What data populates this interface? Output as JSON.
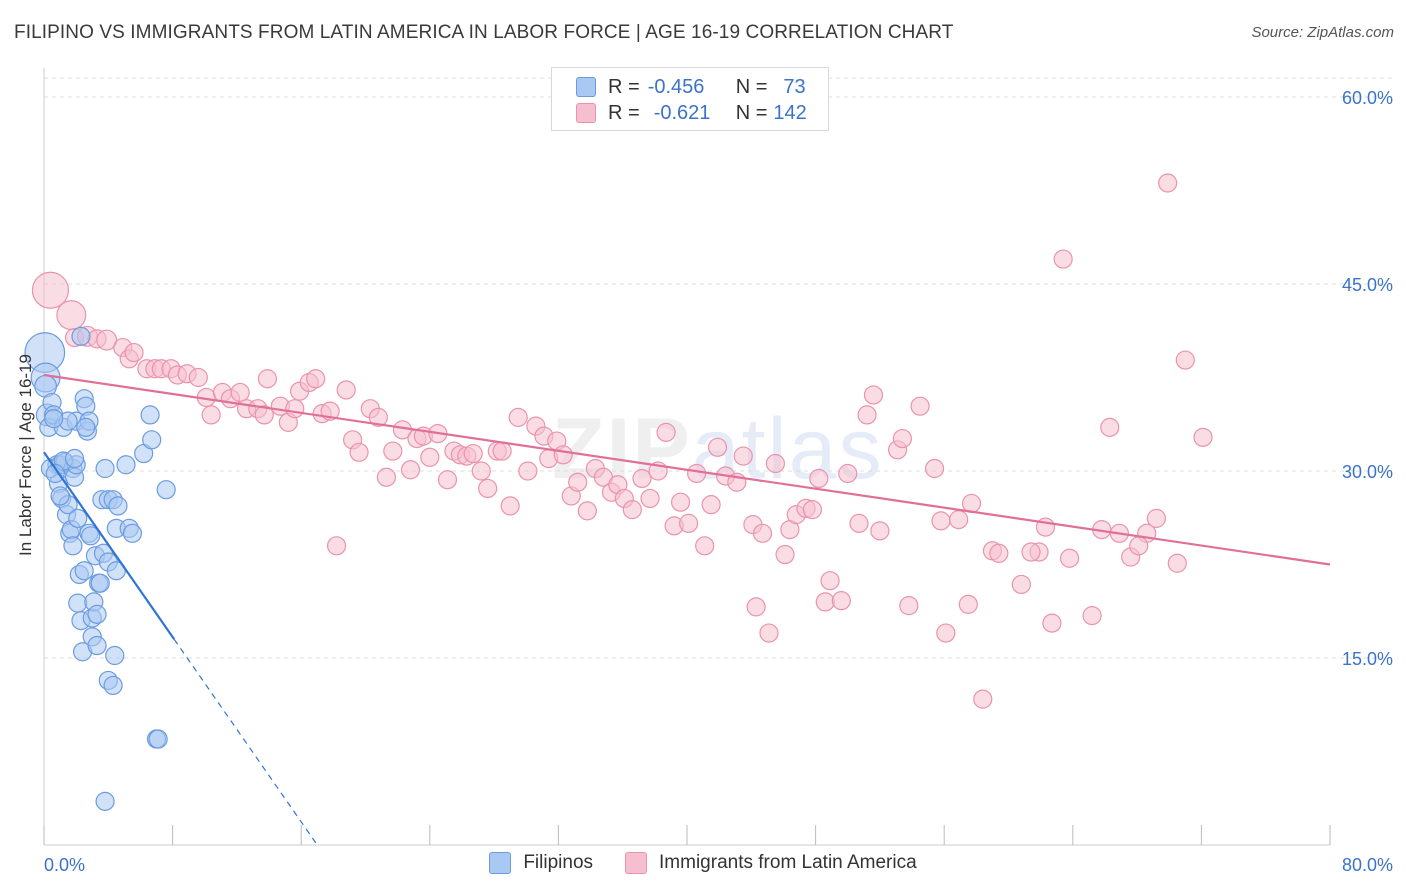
{
  "title": "FILIPINO VS IMMIGRANTS FROM LATIN AMERICA IN LABOR FORCE | AGE 16-19 CORRELATION CHART",
  "source": "Source: ZipAtlas.com",
  "watermark": {
    "zip": "ZIP",
    "atlas": "atlas"
  },
  "legend": {
    "r_label": "R =",
    "n_label": "N =",
    "series": [
      {
        "r": "-0.456",
        "n": "73"
      },
      {
        "r": "-0.621",
        "n": "142"
      }
    ]
  },
  "colors": {
    "blue_fill": "#a9c8f2",
    "blue_stroke": "#6b9ce0",
    "blue_line": "#2f74d4",
    "pink_fill": "#f6bfcf",
    "pink_stroke": "#ea93ad",
    "pink_line": "#e07098",
    "tick_text": "#3b73c9",
    "grid": "#dddddd"
  },
  "chart_data": {
    "type": "scatter",
    "title": "FILIPINO VS IMMIGRANTS FROM LATIN AMERICA IN LABOR FORCE | AGE 16-19 CORRELATION CHART",
    "xlabel": "",
    "ylabel": "In Labor Force | Age 16-19",
    "xlim": [
      0,
      80
    ],
    "ylim": [
      0,
      60
    ],
    "x_tick_labels": [
      "0.0%",
      "80.0%"
    ],
    "y_ticks": [
      {
        "value": 15,
        "label": "15.0%"
      },
      {
        "value": 30,
        "label": "30.0%"
      },
      {
        "value": 45,
        "label": "45.0%"
      },
      {
        "value": 60,
        "label": "60.0%"
      }
    ],
    "series": [
      {
        "name": "Filipinos",
        "r": -0.456,
        "n": 73,
        "trend": {
          "x0": 0,
          "y0": 31.5,
          "x1": 8.1,
          "y1": 16.5,
          "dash_to_x": 17,
          "dash_to_y": 0
        },
        "points": [
          [
            0.05,
            39.5,
            2.2
          ],
          [
            0.1,
            37.5,
            1.6
          ],
          [
            0.1,
            36.8,
            1.2
          ],
          [
            0.2,
            34.5,
            1.2
          ],
          [
            0.3,
            33.5,
            1
          ],
          [
            0.5,
            35.5,
            1
          ],
          [
            0.6,
            34.5,
            1
          ],
          [
            0.8,
            30.5,
            1
          ],
          [
            0.4,
            30.2,
            1
          ],
          [
            0.9,
            29.0,
            1
          ],
          [
            1.0,
            30.5,
            1
          ],
          [
            1.1,
            27.8,
            1
          ],
          [
            1.2,
            33.5,
            1
          ],
          [
            1.3,
            30.7,
            1
          ],
          [
            1.4,
            26.5,
            1
          ],
          [
            1.5,
            27.3,
            1
          ],
          [
            1.6,
            25.0,
            1
          ],
          [
            1.7,
            25.3,
            1
          ],
          [
            1.8,
            24.0,
            1
          ],
          [
            1.8,
            30.2,
            1
          ],
          [
            1.9,
            29.5,
            1
          ],
          [
            2.0,
            30.5,
            1
          ],
          [
            2.0,
            34.0,
            1
          ],
          [
            2.1,
            26.2,
            1
          ],
          [
            2.1,
            19.4,
            1
          ],
          [
            2.2,
            21.7,
            1
          ],
          [
            2.3,
            18.0,
            1
          ],
          [
            2.3,
            40.8,
            1
          ],
          [
            2.4,
            15.5,
            1
          ],
          [
            2.5,
            22.0,
            1
          ],
          [
            2.5,
            35.8,
            1
          ],
          [
            2.6,
            35.2,
            1
          ],
          [
            2.7,
            33.2,
            1
          ],
          [
            2.8,
            25.0,
            1
          ],
          [
            2.8,
            34.0,
            1
          ],
          [
            2.9,
            24.8,
            1
          ],
          [
            3.0,
            18.2,
            1
          ],
          [
            3.0,
            16.7,
            1
          ],
          [
            3.1,
            19.5,
            1
          ],
          [
            3.2,
            23.2,
            1
          ],
          [
            3.3,
            18.5,
            1
          ],
          [
            3.3,
            16.0,
            1
          ],
          [
            3.4,
            21.0,
            1
          ],
          [
            3.5,
            21.0,
            1
          ],
          [
            3.6,
            27.7,
            1
          ],
          [
            3.7,
            23.4,
            1
          ],
          [
            3.8,
            30.2,
            1
          ],
          [
            3.8,
            3.5,
            1
          ],
          [
            4.0,
            27.7,
            1
          ],
          [
            4.0,
            22.7,
            1
          ],
          [
            4.0,
            13.2,
            1
          ],
          [
            4.3,
            12.8,
            1
          ],
          [
            4.3,
            27.7,
            1
          ],
          [
            4.4,
            15.2,
            1
          ],
          [
            4.5,
            22.0,
            1
          ],
          [
            4.5,
            25.4,
            1
          ],
          [
            4.6,
            27.2,
            1
          ],
          [
            5.1,
            30.5,
            1
          ],
          [
            5.3,
            25.4,
            1
          ],
          [
            5.5,
            25.0,
            1
          ],
          [
            6.2,
            31.4,
            1
          ],
          [
            6.6,
            34.5,
            1
          ],
          [
            6.7,
            32.5,
            1
          ],
          [
            7.0,
            8.5,
            1
          ],
          [
            7.1,
            8.5,
            1
          ],
          [
            7.6,
            28.5,
            1
          ],
          [
            1.5,
            34.0,
            1
          ],
          [
            0.6,
            34.2,
            1
          ],
          [
            1.2,
            30.8,
            1
          ],
          [
            1.0,
            28.0,
            1
          ],
          [
            0.7,
            29.8,
            1
          ],
          [
            2.6,
            33.5,
            1
          ],
          [
            1.9,
            31.0,
            1
          ]
        ]
      },
      {
        "name": "Immigrants from Latin America",
        "r": -0.621,
        "n": 142,
        "trend": {
          "x0": 0,
          "y0": 37.7,
          "x1": 80,
          "y1": 22.5
        },
        "points": [
          [
            0.4,
            44.5,
            2
          ],
          [
            1.7,
            42.5,
            1.6
          ],
          [
            1.9,
            40.7,
            1
          ],
          [
            2.7,
            40.8,
            1.1
          ],
          [
            3.3,
            40.6,
            1
          ],
          [
            3.9,
            40.5,
            1.1
          ],
          [
            4.9,
            39.9,
            1
          ],
          [
            5.3,
            39.0,
            1
          ],
          [
            5.6,
            39.5,
            1
          ],
          [
            6.4,
            38.2,
            1
          ],
          [
            6.9,
            38.2,
            1
          ],
          [
            7.3,
            38.2,
            1
          ],
          [
            7.9,
            38.2,
            1
          ],
          [
            8.3,
            37.7,
            1
          ],
          [
            8.9,
            37.8,
            1
          ],
          [
            9.6,
            37.5,
            1
          ],
          [
            10.1,
            35.9,
            1
          ],
          [
            10.4,
            34.5,
            1
          ],
          [
            11.1,
            36.3,
            1
          ],
          [
            11.6,
            35.8,
            1
          ],
          [
            12.2,
            36.3,
            1
          ],
          [
            12.6,
            35.0,
            1
          ],
          [
            13.3,
            35.0,
            1
          ],
          [
            13.7,
            34.5,
            1
          ],
          [
            13.9,
            37.4,
            1
          ],
          [
            14.7,
            35.2,
            1
          ],
          [
            15.2,
            33.9,
            1
          ],
          [
            15.6,
            35.0,
            1
          ],
          [
            15.9,
            36.4,
            1
          ],
          [
            16.5,
            37.1,
            1
          ],
          [
            16.9,
            37.4,
            1
          ],
          [
            17.3,
            34.6,
            1
          ],
          [
            17.8,
            34.8,
            1
          ],
          [
            18.2,
            24.0,
            1
          ],
          [
            18.8,
            36.5,
            1
          ],
          [
            19.2,
            32.5,
            1
          ],
          [
            19.6,
            31.5,
            1
          ],
          [
            20.3,
            35.0,
            1
          ],
          [
            20.8,
            34.3,
            1
          ],
          [
            21.3,
            29.5,
            1
          ],
          [
            21.7,
            31.6,
            1
          ],
          [
            22.3,
            33.3,
            1
          ],
          [
            22.8,
            30.1,
            1
          ],
          [
            23.2,
            32.6,
            1
          ],
          [
            23.6,
            32.8,
            1
          ],
          [
            24.0,
            31.1,
            1
          ],
          [
            24.5,
            33.0,
            1
          ],
          [
            25.1,
            29.3,
            1
          ],
          [
            25.5,
            31.6,
            1
          ],
          [
            25.9,
            31.3,
            1
          ],
          [
            26.3,
            31.2,
            1
          ],
          [
            26.7,
            31.4,
            1
          ],
          [
            27.2,
            30.0,
            1
          ],
          [
            27.6,
            28.6,
            1
          ],
          [
            28.2,
            31.6,
            1
          ],
          [
            28.5,
            31.6,
            1
          ],
          [
            29.0,
            27.2,
            1
          ],
          [
            29.5,
            34.3,
            1
          ],
          [
            30.1,
            30.0,
            1
          ],
          [
            30.6,
            33.6,
            1
          ],
          [
            31.1,
            32.8,
            1
          ],
          [
            31.4,
            31.0,
            1
          ],
          [
            31.9,
            32.4,
            1
          ],
          [
            32.3,
            31.3,
            1
          ],
          [
            32.8,
            28.0,
            1
          ],
          [
            33.2,
            29.1,
            1
          ],
          [
            33.8,
            26.8,
            1
          ],
          [
            34.3,
            30.2,
            1
          ],
          [
            34.8,
            29.5,
            1
          ],
          [
            35.3,
            28.3,
            1
          ],
          [
            35.7,
            28.9,
            1
          ],
          [
            36.1,
            27.8,
            1
          ],
          [
            36.6,
            26.9,
            1
          ],
          [
            37.2,
            29.4,
            1
          ],
          [
            37.7,
            27.8,
            1
          ],
          [
            38.2,
            30.0,
            1
          ],
          [
            38.7,
            33.1,
            1
          ],
          [
            39.2,
            25.6,
            1
          ],
          [
            39.6,
            27.5,
            1
          ],
          [
            40.1,
            25.8,
            1
          ],
          [
            40.6,
            29.8,
            1
          ],
          [
            41.1,
            24.0,
            1
          ],
          [
            41.5,
            27.3,
            1
          ],
          [
            41.9,
            31.9,
            1
          ],
          [
            42.4,
            29.6,
            1
          ],
          [
            43.1,
            29.1,
            1
          ],
          [
            43.5,
            31.2,
            1
          ],
          [
            44.1,
            25.7,
            1
          ],
          [
            44.3,
            19.1,
            1
          ],
          [
            44.7,
            25.0,
            1
          ],
          [
            45.1,
            17.0,
            1
          ],
          [
            45.5,
            30.6,
            1
          ],
          [
            46.1,
            23.3,
            1
          ],
          [
            46.4,
            25.3,
            1
          ],
          [
            46.8,
            26.5,
            1
          ],
          [
            47.4,
            27.0,
            1
          ],
          [
            47.8,
            26.9,
            1
          ],
          [
            48.2,
            29.4,
            1
          ],
          [
            48.6,
            19.5,
            1
          ],
          [
            48.9,
            21.2,
            1
          ],
          [
            49.6,
            19.6,
            1
          ],
          [
            50.0,
            29.8,
            1
          ],
          [
            50.7,
            25.8,
            1
          ],
          [
            51.2,
            34.5,
            1
          ],
          [
            51.6,
            36.1,
            1
          ],
          [
            52.0,
            25.2,
            1
          ],
          [
            53.1,
            31.7,
            1
          ],
          [
            53.4,
            32.6,
            1
          ],
          [
            53.8,
            19.2,
            1
          ],
          [
            54.5,
            35.2,
            1
          ],
          [
            55.4,
            30.2,
            1
          ],
          [
            55.8,
            26.0,
            1
          ],
          [
            56.1,
            17.0,
            1
          ],
          [
            56.9,
            26.1,
            1
          ],
          [
            57.5,
            19.3,
            1
          ],
          [
            57.7,
            27.4,
            1
          ],
          [
            58.4,
            11.7,
            1
          ],
          [
            59.0,
            23.6,
            1
          ],
          [
            59.4,
            23.4,
            1
          ],
          [
            60.8,
            20.9,
            1
          ],
          [
            61.9,
            23.5,
            1
          ],
          [
            62.3,
            25.5,
            1
          ],
          [
            62.7,
            17.8,
            1
          ],
          [
            63.4,
            47.0,
            1
          ],
          [
            63.8,
            23.0,
            1
          ],
          [
            65.2,
            18.4,
            1
          ],
          [
            65.8,
            25.3,
            1
          ],
          [
            66.3,
            33.5,
            1
          ],
          [
            66.9,
            25.0,
            1
          ],
          [
            67.6,
            23.1,
            1
          ],
          [
            68.6,
            25.0,
            1
          ],
          [
            69.2,
            26.2,
            1
          ],
          [
            69.9,
            53.1,
            1
          ],
          [
            70.5,
            22.6,
            1
          ],
          [
            71.0,
            38.9,
            1
          ],
          [
            72.1,
            32.7,
            1
          ],
          [
            61.4,
            23.5,
            1
          ],
          [
            68.1,
            24.0,
            1
          ]
        ]
      }
    ]
  },
  "bottom_legend": [
    "Filipinos",
    "Immigrants from Latin America"
  ]
}
